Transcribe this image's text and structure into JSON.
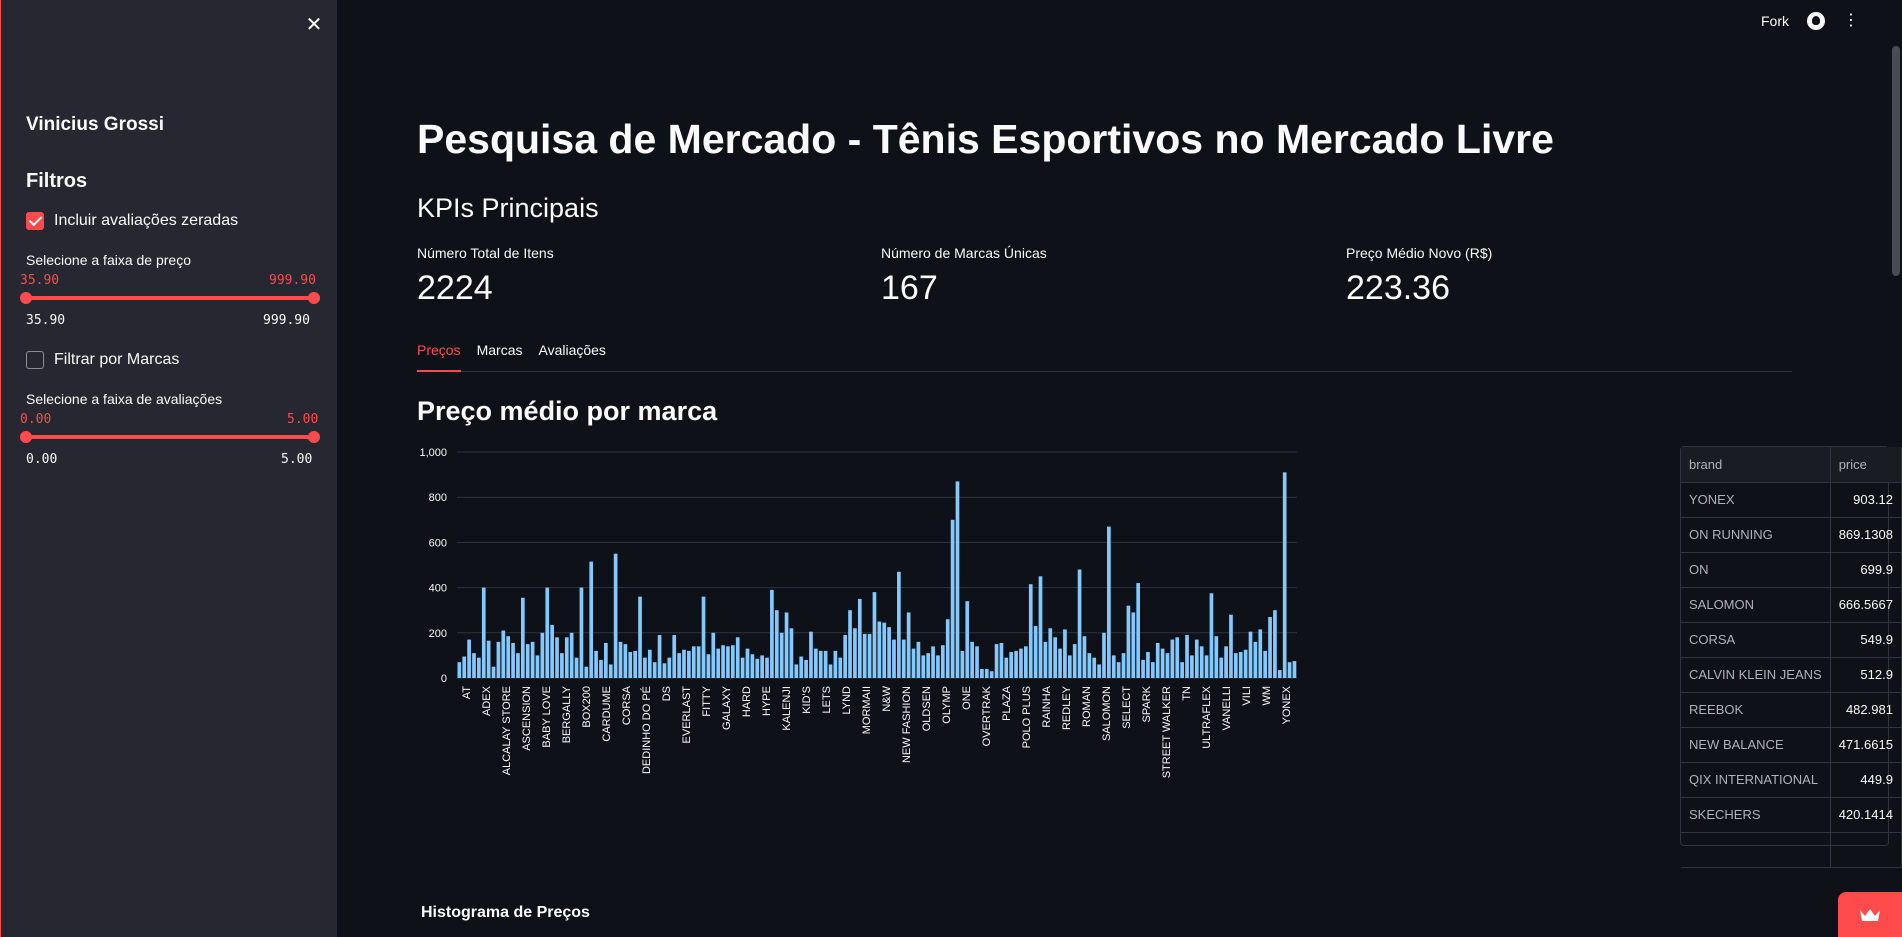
{
  "sidebar": {
    "close_icon": "close-icon",
    "user": "Vinicius Grossi",
    "filters_heading": "Filtros",
    "include_zero_ratings": {
      "label": "Incluir avaliações zeradas",
      "checked": true
    },
    "price_slider": {
      "label": "Selecione a faixa de preço",
      "low": "35.90",
      "high": "999.90",
      "min": "35.90",
      "max": "999.90"
    },
    "filter_brands": {
      "label": "Filtrar por Marcas",
      "checked": false
    },
    "rating_slider": {
      "label": "Selecione a faixa de avaliações",
      "low": "0.00",
      "high": "5.00",
      "min": "0.00",
      "max": "5.00"
    }
  },
  "header": {
    "fork_label": "Fork",
    "github_icon": "github-icon",
    "menu_icon": "kebab-menu-icon"
  },
  "main": {
    "title": "Pesquisa de Mercado - Tênis Esportivos no Mercado Livre",
    "kpis_heading": "KPIs Principais",
    "kpis": [
      {
        "label": "Número Total de Itens",
        "value": "2224"
      },
      {
        "label": "Número de Marcas Únicas",
        "value": "167"
      },
      {
        "label": "Preço Médio Novo (R$)",
        "value": "223.36"
      }
    ],
    "tabs": [
      {
        "label": "Preços",
        "active": true
      },
      {
        "label": "Marcas",
        "active": false
      },
      {
        "label": "Avaliações",
        "active": false
      }
    ],
    "chart_heading": "Preço médio por marca",
    "histogram_heading": "Histograma de Preços"
  },
  "table": {
    "columns": [
      "brand",
      "price"
    ],
    "rows": [
      [
        "YONEX",
        "903.12"
      ],
      [
        "ON RUNNING",
        "869.1308"
      ],
      [
        "ON",
        "699.9"
      ],
      [
        "SALOMON",
        "666.5667"
      ],
      [
        "CORSA",
        "549.9"
      ],
      [
        "CALVIN KLEIN JEANS",
        "512.9"
      ],
      [
        "REEBOK",
        "482.981"
      ],
      [
        "NEW BALANCE",
        "471.6615"
      ],
      [
        "QIX INTERNATIONAL",
        "449.9"
      ],
      [
        "SKECHERS",
        "420.1414"
      ]
    ]
  },
  "colors": {
    "accent": "#ff4b4b",
    "bar": "#83c9ff",
    "background": "#0e1117",
    "sidebar": "#262730"
  },
  "chart_data": {
    "type": "bar",
    "ylim": [
      0,
      1000
    ],
    "yticks": [
      "0",
      "200",
      "400",
      "600",
      "800",
      "1,000"
    ],
    "x_tick_labels": [
      "AT",
      "ADEX",
      "ALCALAY STORE",
      "ASCENSION",
      "BABY LOVE",
      "BERGALLY",
      "BOX200",
      "CARDUME",
      "CORSA",
      "DEDINHO DO PÉ",
      "DS",
      "EVERLAST",
      "FITTY",
      "GALAXY",
      "HARD",
      "HYPE",
      "KALENJI",
      "KID'S",
      "LETS",
      "LYND",
      "MORMAII",
      "N&W",
      "NEW FASHION",
      "OLDSEN",
      "OLYMP",
      "ONE",
      "OVERTRAK",
      "PLAZA",
      "POLO PLUS",
      "RAINHA",
      "REDLEY",
      "ROMAN",
      "SALOMON",
      "SELECT",
      "SPARK",
      "STREET WALKER",
      "TN",
      "ULTRAFLEX",
      "VANELLI",
      "VILI",
      "WM",
      "YONEX"
    ],
    "values": [
      70,
      95,
      170,
      110,
      90,
      400,
      165,
      50,
      160,
      210,
      185,
      155,
      110,
      355,
      150,
      160,
      100,
      200,
      400,
      235,
      180,
      110,
      180,
      200,
      90,
      400,
      50,
      515,
      120,
      80,
      155,
      60,
      550,
      160,
      150,
      115,
      120,
      360,
      90,
      125,
      70,
      190,
      65,
      90,
      190,
      110,
      125,
      120,
      140,
      140,
      360,
      105,
      200,
      130,
      145,
      140,
      145,
      180,
      90,
      130,
      105,
      85,
      100,
      90,
      390,
      300,
      200,
      290,
      220,
      60,
      95,
      80,
      205,
      130,
      120,
      120,
      60,
      120,
      90,
      190,
      300,
      220,
      350,
      195,
      195,
      380,
      250,
      245,
      225,
      170,
      470,
      170,
      290,
      130,
      160,
      100,
      110,
      140,
      100,
      145,
      260,
      700,
      870,
      120,
      340,
      160,
      140,
      40,
      40,
      30,
      150,
      155,
      90,
      115,
      120,
      130,
      140,
      415,
      230,
      450,
      160,
      220,
      180,
      130,
      215,
      100,
      150,
      480,
      185,
      110,
      90,
      60,
      200,
      670,
      100,
      70,
      110,
      320,
      290,
      420,
      80,
      115,
      70,
      155,
      130,
      110,
      170,
      180,
      70,
      190,
      100,
      170,
      140,
      100,
      375,
      185,
      90,
      140,
      280,
      110,
      115,
      125,
      205,
      160,
      215,
      120,
      270,
      300,
      35,
      910,
      70,
      75
    ]
  }
}
